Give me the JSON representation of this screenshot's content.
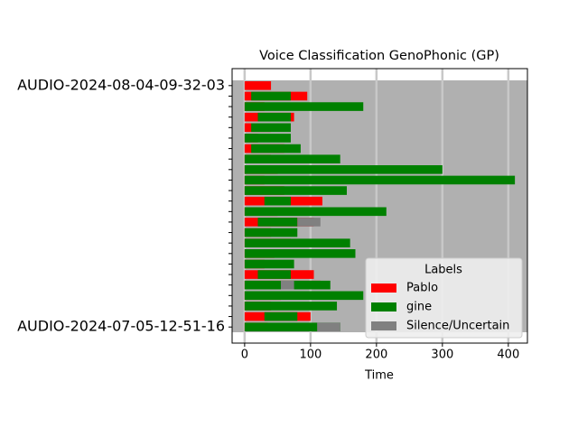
{
  "chart_data": {
    "type": "broken_barh",
    "title": "Voice Classification GenoPhonic (GP)",
    "xlabel": "Time",
    "legend_title": "Labels",
    "legend_position": "lower right",
    "plot_background": "#b0b0b0",
    "grid": true,
    "xlim": [
      -19,
      429
    ],
    "xticks": [
      0,
      100,
      200,
      300,
      400
    ],
    "categories": [
      "AUDIO-2024-08-04-09-32-03",
      null,
      null,
      null,
      null,
      null,
      null,
      null,
      null,
      null,
      null,
      null,
      null,
      null,
      null,
      null,
      null,
      null,
      null,
      null,
      null,
      null,
      null,
      "AUDIO-2024-07-05-12-51-16"
    ],
    "series": [
      {
        "name": "Pablo",
        "color": "#ff0000",
        "values": [
          [
            [
              0,
              40
            ]
          ],
          [
            [
              0,
              95
            ]
          ],
          [
            [
              0,
              30
            ]
          ],
          [
            [
              0,
              75
            ]
          ],
          [
            [
              0,
              40
            ]
          ],
          [
            [
              0,
              20
            ]
          ],
          [
            [
              0,
              60
            ]
          ],
          [
            [
              0,
              40
            ]
          ],
          [
            [
              0,
              50
            ]
          ],
          [
            [
              0,
              30
            ]
          ],
          [
            [
              0,
              60
            ]
          ],
          [
            [
              0,
              118
            ]
          ],
          [
            [
              0,
              50
            ]
          ],
          [
            [
              0,
              105
            ]
          ],
          [
            [
              0,
              40
            ]
          ],
          [
            [
              0,
              70
            ]
          ],
          [
            [
              0,
              45
            ]
          ],
          [
            [
              0,
              30
            ]
          ],
          [
            [
              0,
              105
            ]
          ],
          [
            [
              0,
              115
            ]
          ],
          [
            [
              0,
              55
            ]
          ],
          [
            [
              0,
              40
            ]
          ],
          [
            [
              0,
              100
            ]
          ],
          [
            [
              0,
              35
            ]
          ]
        ]
      },
      {
        "name": "gine",
        "color": "#008000",
        "values": [
          [],
          [
            [
              10,
              60
            ]
          ],
          [
            [
              0,
              180
            ]
          ],
          [
            [
              20,
              50
            ]
          ],
          [
            [
              10,
              60
            ]
          ],
          [
            [
              0,
              70
            ]
          ],
          [
            [
              10,
              75
            ]
          ],
          [
            [
              0,
              145
            ]
          ],
          [
            [
              0,
              300
            ]
          ],
          [
            [
              0,
              410
            ]
          ],
          [
            [
              0,
              155
            ]
          ],
          [
            [
              30,
              40
            ]
          ],
          [
            [
              0,
              215
            ]
          ],
          [
            [
              20,
              60
            ]
          ],
          [
            [
              0,
              80
            ]
          ],
          [
            [
              0,
              160
            ]
          ],
          [
            [
              0,
              168
            ]
          ],
          [
            [
              0,
              75
            ]
          ],
          [
            [
              20,
              50
            ]
          ],
          [
            [
              0,
              130
            ]
          ],
          [
            [
              0,
              180
            ]
          ],
          [
            [
              0,
              140
            ]
          ],
          [
            [
              30,
              50
            ]
          ],
          [
            [
              0,
              145
            ]
          ]
        ]
      },
      {
        "name": "Silence/Uncertain",
        "color": "#808080",
        "values": [
          [],
          [],
          [],
          [],
          [],
          [],
          [],
          [],
          [],
          [],
          [],
          [],
          [],
          [
            [
              80,
              35
            ]
          ],
          [],
          [],
          [],
          [],
          [],
          [
            [
              55,
              20
            ]
          ],
          [],
          [],
          [],
          [
            [
              110,
              35
            ]
          ]
        ]
      }
    ]
  }
}
